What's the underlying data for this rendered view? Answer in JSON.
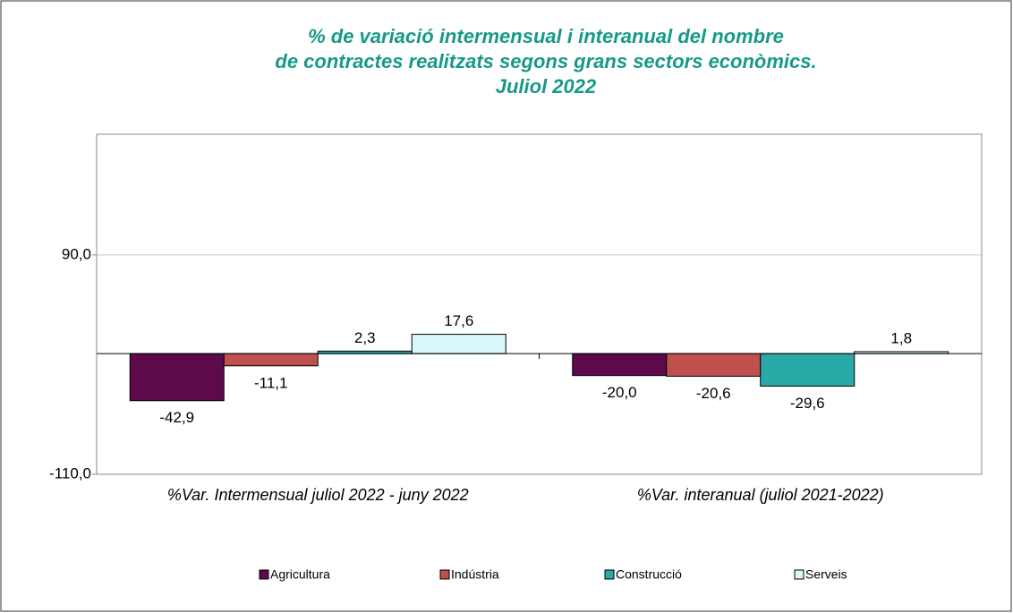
{
  "chart_data": {
    "type": "bar",
    "title": "% de variació intermensual i interanual del nombre de contractes realitzats segons grans sectors econòmics. Juliol 2022",
    "categories": [
      "%Var. Intermensual juliol 2022 - juny 2022",
      "%Var. interanual (juliol 2021-2022)"
    ],
    "series": [
      {
        "name": "Agricultura",
        "color": "#5c0a4c",
        "values": [
          -42.9,
          -20.0
        ],
        "value_labels": [
          "-42,9",
          "-20,0"
        ]
      },
      {
        "name": "Indústria",
        "color": "#c0504d",
        "values": [
          -11.1,
          -20.6
        ],
        "value_labels": [
          "-11,1",
          "-20,6"
        ]
      },
      {
        "name": "Construcció",
        "color": "#2aa9a9",
        "values": [
          2.3,
          -29.6
        ],
        "value_labels": [
          "2,3",
          "-29,6"
        ]
      },
      {
        "name": "Serveis",
        "color": "#d9f8fb",
        "values": [
          17.6,
          1.8
        ],
        "value_labels": [
          "17,6",
          "1,8"
        ]
      }
    ],
    "ylim": [
      -110,
      200
    ],
    "yticks": [
      {
        "value": -110,
        "label": "-110,0"
      },
      {
        "value": 90,
        "label": "90,0"
      }
    ],
    "grid": true,
    "legend": "bottom"
  }
}
